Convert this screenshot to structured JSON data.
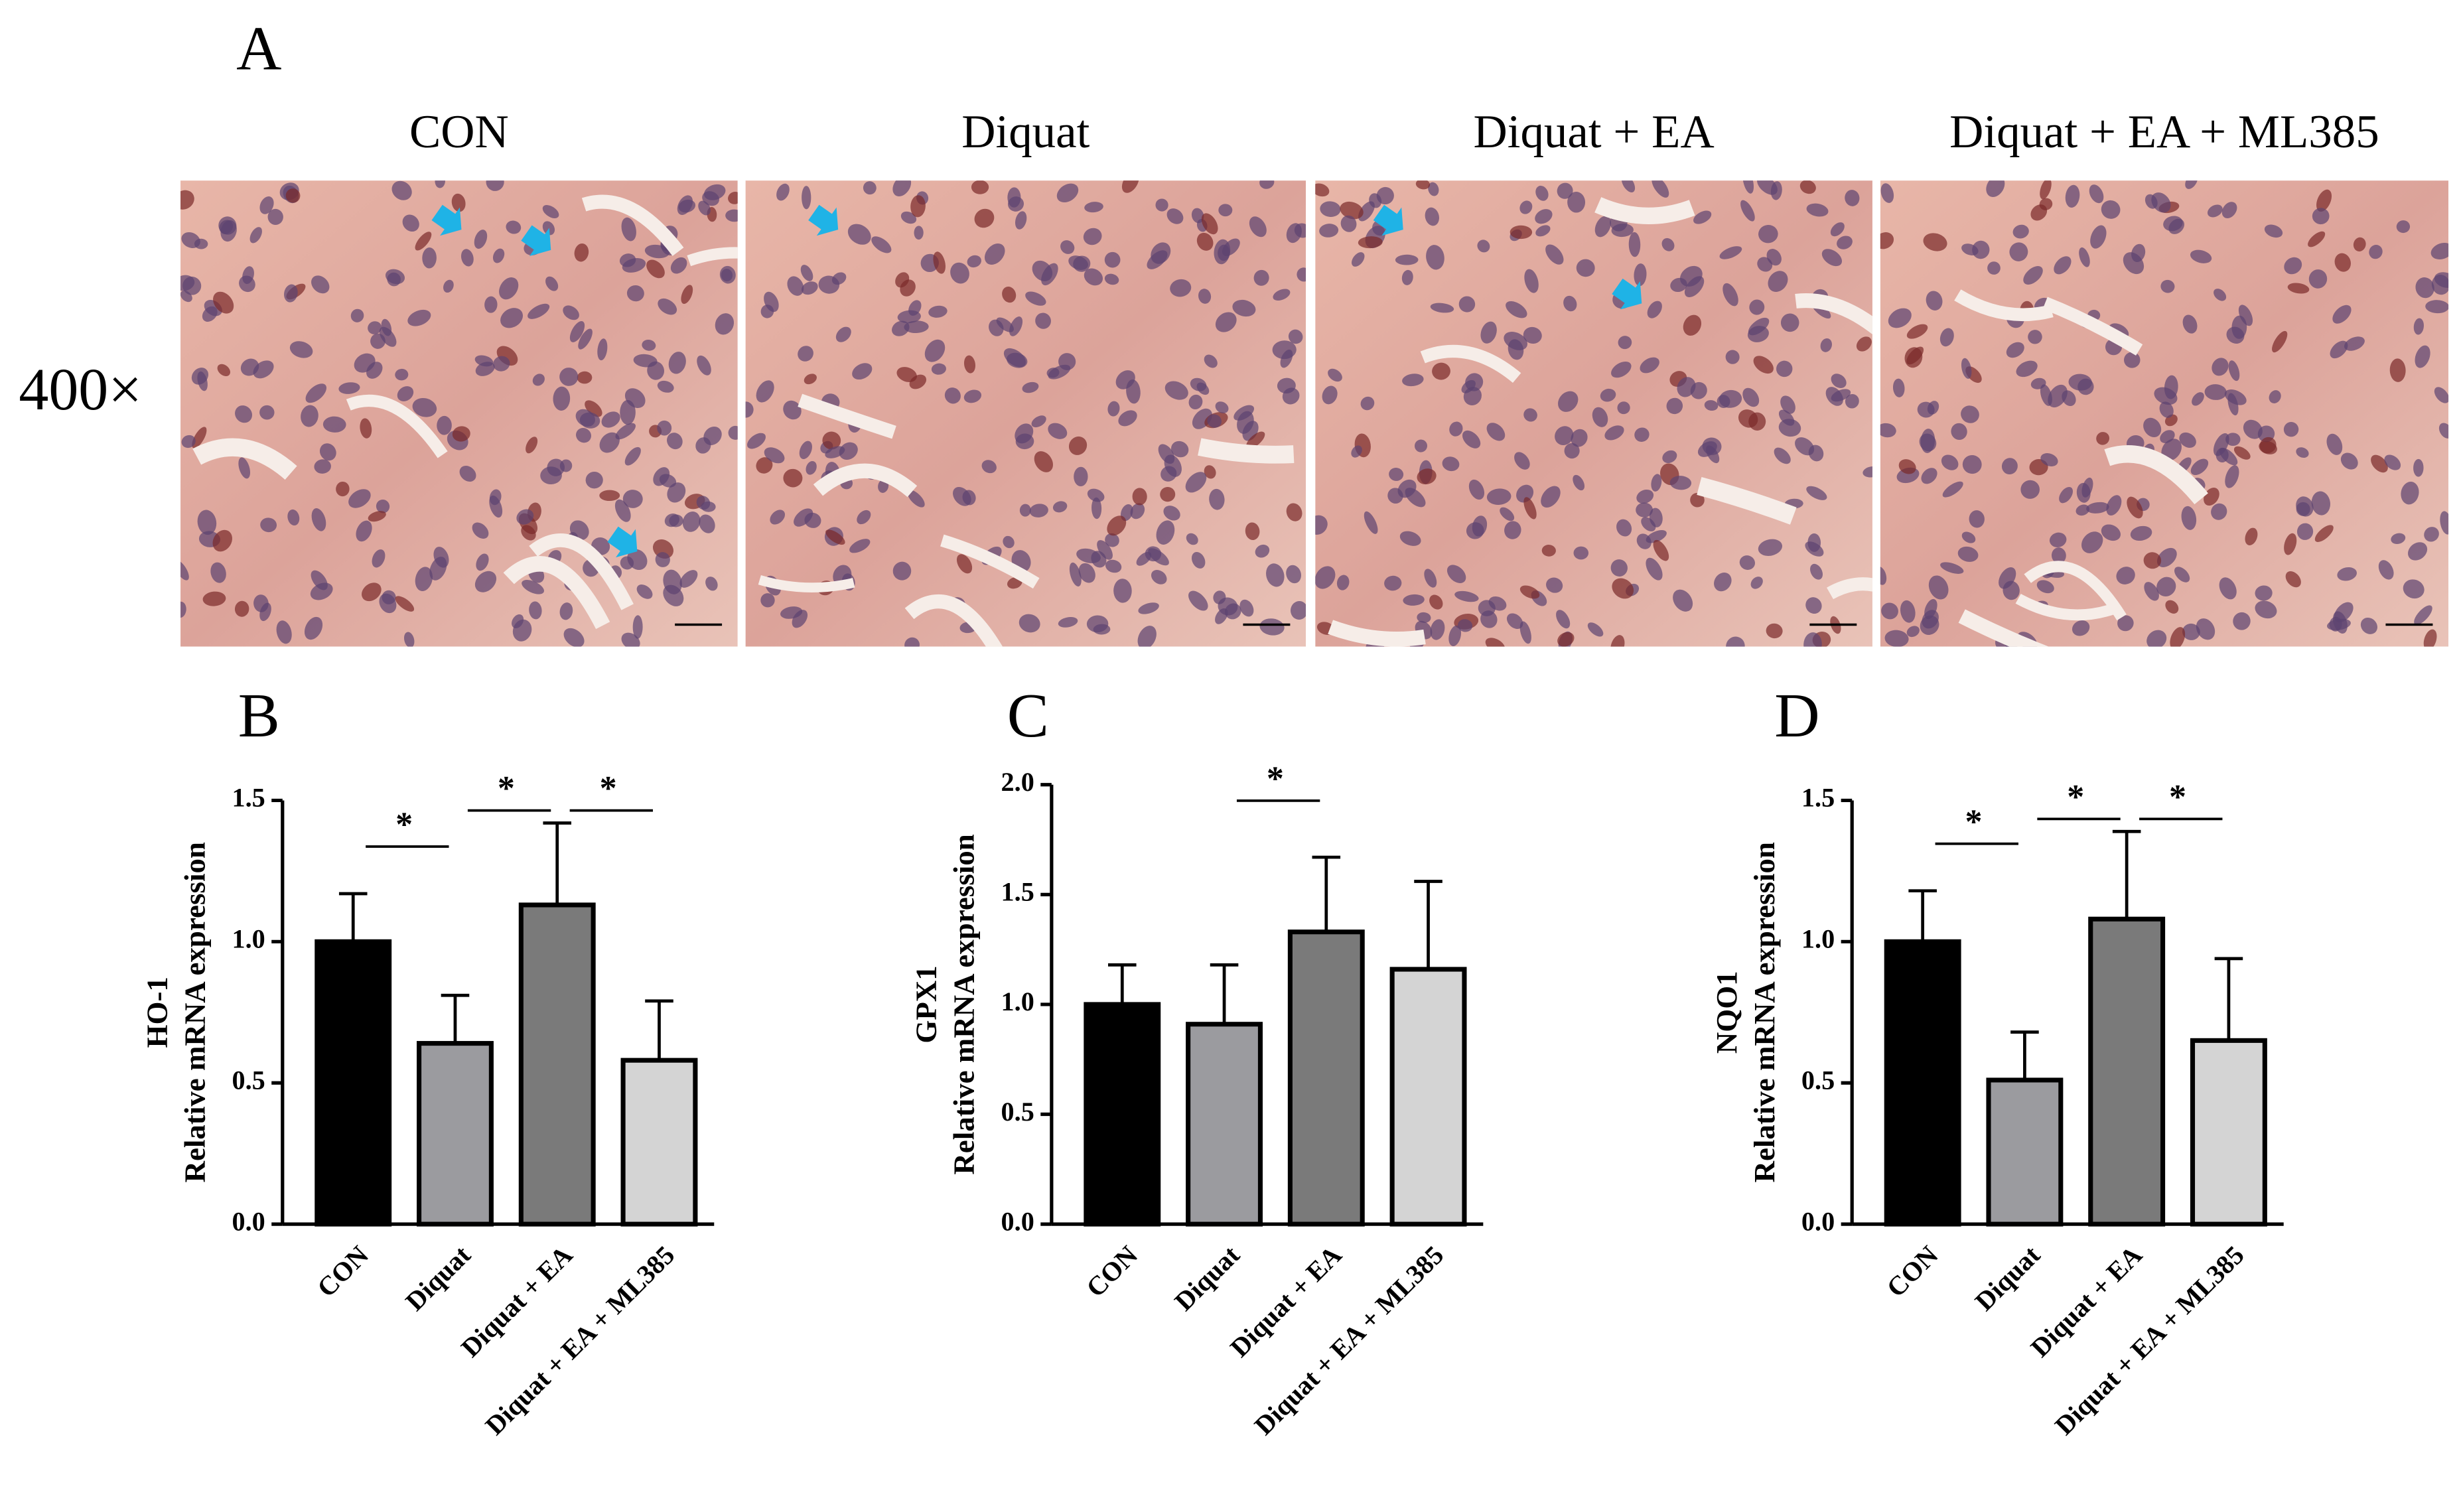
{
  "panel_a": {
    "label": "A",
    "magnification": "400×",
    "columns": [
      "CON",
      "Diquat",
      "Diquat + EA",
      "Diquat + EA + ML385"
    ]
  },
  "chart_data": [
    {
      "type": "bar",
      "panel_label": "B",
      "gene": "HO-1",
      "ylabel": "Relative mRNA expression",
      "categories": [
        "CON",
        "Diquat",
        "Diquat + EA",
        "Diquat + EA + ML385"
      ],
      "values": [
        1.0,
        0.64,
        1.13,
        0.58
      ],
      "errors": [
        0.17,
        0.17,
        0.29,
        0.21
      ],
      "colors": [
        "#000000",
        "#9b9b9f",
        "#7a7a7a",
        "#d4d4d4"
      ],
      "ylim": [
        0,
        1.5
      ],
      "yticks": [
        {
          "value": 0,
          "label": "0.0"
        },
        0.5,
        {
          "value": 1,
          "label": "1.0"
        },
        1.5
      ],
      "significance": [
        {
          "groups": [
            0,
            1
          ],
          "label": "*"
        },
        {
          "groups": [
            1,
            2
          ],
          "label": "*"
        },
        {
          "groups": [
            2,
            3
          ],
          "label": "*"
        }
      ]
    },
    {
      "type": "bar",
      "panel_label": "C",
      "gene": "GPX1",
      "ylabel": "Relative mRNA expression",
      "categories": [
        "CON",
        "Diquat",
        "Diquat + EA",
        "Diquat + EA + ML385"
      ],
      "values": [
        1.0,
        0.91,
        1.33,
        1.16
      ],
      "errors": [
        0.18,
        0.27,
        0.34,
        0.4
      ],
      "colors": [
        "#000000",
        "#9b9b9f",
        "#7a7a7a",
        "#d4d4d4"
      ],
      "ylim": [
        0,
        2
      ],
      "yticks": [
        {
          "value": 0,
          "label": "0.0"
        },
        0.5,
        {
          "value": 1,
          "label": "1.0"
        },
        1.5,
        {
          "value": 2,
          "label": "2.0"
        }
      ],
      "significance": [
        {
          "groups": [
            1,
            2
          ],
          "label": "*"
        }
      ]
    },
    {
      "type": "bar",
      "panel_label": "D",
      "gene": "NQO1",
      "ylabel": "Relative mRNA expression",
      "categories": [
        "CON",
        "Diquat",
        "Diquat + EA",
        "Diquat + EA + ML385"
      ],
      "values": [
        1.0,
        0.51,
        1.08,
        0.65
      ],
      "errors": [
        0.18,
        0.17,
        0.31,
        0.29
      ],
      "colors": [
        "#000000",
        "#9b9b9f",
        "#7a7a7a",
        "#d4d4d4"
      ],
      "ylim": [
        0,
        1.5
      ],
      "yticks": [
        {
          "value": 0,
          "label": "0.0"
        },
        0.5,
        {
          "value": 1,
          "label": "1.0"
        },
        1.5
      ],
      "significance": [
        {
          "groups": [
            0,
            1
          ],
          "label": "*"
        },
        {
          "groups": [
            1,
            2
          ],
          "label": "*"
        },
        {
          "groups": [
            2,
            3
          ],
          "label": "*"
        }
      ]
    }
  ]
}
